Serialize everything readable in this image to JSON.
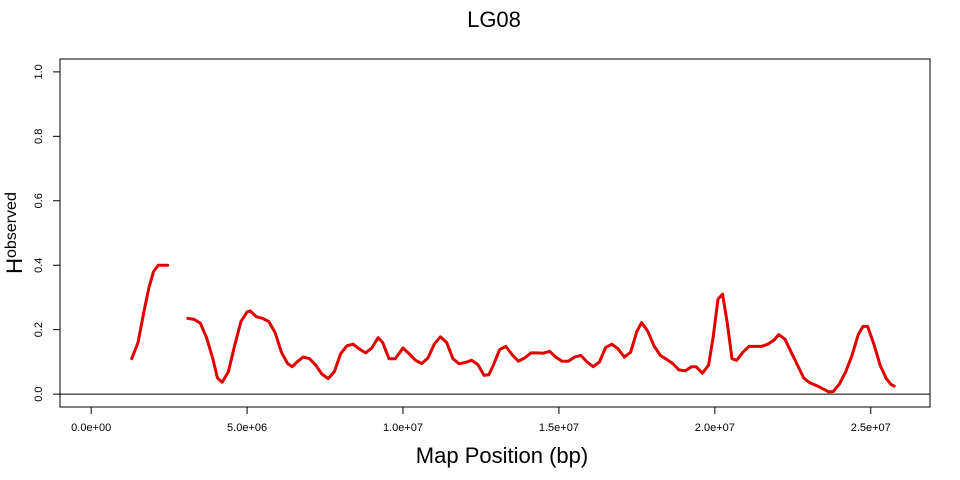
{
  "chart_data": {
    "type": "line",
    "title": "LG08",
    "xlabel": "Map Position (bp)",
    "ylabel_main": "H",
    "ylabel_sub": "observed",
    "xlim": [
      -1000000,
      26900000
    ],
    "ylim": [
      -0.04,
      1.04
    ],
    "xticks": [
      0,
      5000000,
      10000000,
      15000000,
      20000000,
      25000000
    ],
    "xtick_labels": [
      "0.0e+00",
      "5.0e+06",
      "1.0e+07",
      "1.5e+07",
      "2.0e+07",
      "2.5e+07"
    ],
    "yticks": [
      0.0,
      0.2,
      0.4,
      0.6,
      0.8,
      1.0
    ],
    "ytick_labels": [
      "0.0",
      "0.2",
      "0.4",
      "0.6",
      "0.8",
      "1.0"
    ],
    "hline": 0.0,
    "grid": false,
    "series_color": "#e00000",
    "series": [
      {
        "values": [
          [
            1300000,
            0.11
          ],
          [
            1500000,
            0.16
          ],
          [
            1700000,
            0.26
          ],
          [
            1850000,
            0.33
          ],
          [
            2000000,
            0.38
          ],
          [
            2150000,
            0.4
          ],
          [
            2300000,
            0.4
          ],
          [
            2450000,
            0.4
          ]
        ]
      },
      {
        "values": [
          [
            3100000,
            0.235
          ],
          [
            3300000,
            0.232
          ],
          [
            3500000,
            0.22
          ],
          [
            3700000,
            0.175
          ],
          [
            3900000,
            0.11
          ],
          [
            4050000,
            0.05
          ],
          [
            4200000,
            0.037
          ],
          [
            4400000,
            0.07
          ],
          [
            4600000,
            0.15
          ],
          [
            4800000,
            0.225
          ],
          [
            5000000,
            0.255
          ],
          [
            5100000,
            0.258
          ],
          [
            5300000,
            0.24
          ],
          [
            5500000,
            0.235
          ],
          [
            5700000,
            0.225
          ],
          [
            5900000,
            0.19
          ],
          [
            6100000,
            0.13
          ],
          [
            6300000,
            0.095
          ],
          [
            6450000,
            0.085
          ],
          [
            6600000,
            0.1
          ],
          [
            6800000,
            0.115
          ],
          [
            7000000,
            0.11
          ],
          [
            7200000,
            0.09
          ],
          [
            7400000,
            0.062
          ],
          [
            7600000,
            0.048
          ],
          [
            7800000,
            0.07
          ],
          [
            8000000,
            0.125
          ],
          [
            8200000,
            0.15
          ],
          [
            8400000,
            0.155
          ],
          [
            8600000,
            0.14
          ],
          [
            8800000,
            0.128
          ],
          [
            9000000,
            0.143
          ],
          [
            9200000,
            0.175
          ],
          [
            9350000,
            0.16
          ],
          [
            9550000,
            0.11
          ],
          [
            9750000,
            0.11
          ],
          [
            10000000,
            0.143
          ],
          [
            10200000,
            0.125
          ],
          [
            10400000,
            0.105
          ],
          [
            10600000,
            0.095
          ],
          [
            10800000,
            0.112
          ],
          [
            11000000,
            0.155
          ],
          [
            11200000,
            0.178
          ],
          [
            11400000,
            0.16
          ],
          [
            11600000,
            0.11
          ],
          [
            11800000,
            0.094
          ],
          [
            12000000,
            0.098
          ],
          [
            12200000,
            0.105
          ],
          [
            12400000,
            0.092
          ],
          [
            12600000,
            0.058
          ],
          [
            12750000,
            0.06
          ],
          [
            12900000,
            0.09
          ],
          [
            13100000,
            0.138
          ],
          [
            13300000,
            0.148
          ],
          [
            13500000,
            0.122
          ],
          [
            13700000,
            0.102
          ],
          [
            13900000,
            0.112
          ],
          [
            14100000,
            0.128
          ],
          [
            14300000,
            0.128
          ],
          [
            14500000,
            0.127
          ],
          [
            14700000,
            0.133
          ],
          [
            14900000,
            0.115
          ],
          [
            15100000,
            0.102
          ],
          [
            15300000,
            0.102
          ],
          [
            15500000,
            0.115
          ],
          [
            15700000,
            0.12
          ],
          [
            15900000,
            0.1
          ],
          [
            16100000,
            0.085
          ],
          [
            16300000,
            0.1
          ],
          [
            16500000,
            0.145
          ],
          [
            16700000,
            0.155
          ],
          [
            16900000,
            0.14
          ],
          [
            17100000,
            0.115
          ],
          [
            17300000,
            0.13
          ],
          [
            17500000,
            0.195
          ],
          [
            17650000,
            0.222
          ],
          [
            17850000,
            0.195
          ],
          [
            18050000,
            0.15
          ],
          [
            18250000,
            0.12
          ],
          [
            18450000,
            0.108
          ],
          [
            18650000,
            0.095
          ],
          [
            18850000,
            0.075
          ],
          [
            19050000,
            0.072
          ],
          [
            19250000,
            0.085
          ],
          [
            19400000,
            0.085
          ],
          [
            19600000,
            0.065
          ],
          [
            19800000,
            0.09
          ],
          [
            19950000,
            0.18
          ],
          [
            20100000,
            0.295
          ],
          [
            20250000,
            0.31
          ],
          [
            20400000,
            0.22
          ],
          [
            20550000,
            0.11
          ],
          [
            20700000,
            0.105
          ],
          [
            20900000,
            0.13
          ],
          [
            21100000,
            0.148
          ],
          [
            21300000,
            0.148
          ],
          [
            21500000,
            0.148
          ],
          [
            21700000,
            0.155
          ],
          [
            21900000,
            0.168
          ],
          [
            22050000,
            0.185
          ],
          [
            22250000,
            0.17
          ],
          [
            22450000,
            0.13
          ],
          [
            22650000,
            0.09
          ],
          [
            22850000,
            0.05
          ],
          [
            23050000,
            0.035
          ],
          [
            23300000,
            0.025
          ],
          [
            23500000,
            0.015
          ],
          [
            23650000,
            0.007
          ],
          [
            23800000,
            0.008
          ],
          [
            24000000,
            0.032
          ],
          [
            24200000,
            0.07
          ],
          [
            24400000,
            0.12
          ],
          [
            24600000,
            0.185
          ],
          [
            24750000,
            0.21
          ],
          [
            24900000,
            0.21
          ],
          [
            25100000,
            0.155
          ],
          [
            25300000,
            0.09
          ],
          [
            25500000,
            0.048
          ],
          [
            25650000,
            0.03
          ],
          [
            25750000,
            0.025
          ]
        ]
      }
    ]
  }
}
